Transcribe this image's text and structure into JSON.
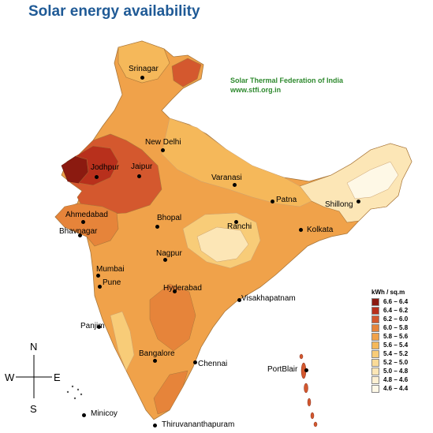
{
  "title": "Solar energy availability",
  "credit": {
    "org": "Solar Thermal Federation of India",
    "url": "www.stfi.org.in"
  },
  "legend": {
    "title": "kWh / sq.m",
    "items": [
      {
        "label": "6.6 – 6.4",
        "color": "#8b1a10"
      },
      {
        "label": "6.4 – 6.2",
        "color": "#b8301c"
      },
      {
        "label": "6.2 – 6.0",
        "color": "#d4582e"
      },
      {
        "label": "6.0 – 5.8",
        "color": "#e6843a"
      },
      {
        "label": "5.8 – 5.6",
        "color": "#f0a24a"
      },
      {
        "label": "5.6 – 5.4",
        "color": "#f5b85a"
      },
      {
        "label": "5.4 – 5.2",
        "color": "#f8cc78"
      },
      {
        "label": "5.2 – 5.0",
        "color": "#fadb98"
      },
      {
        "label": "5.0 – 4.8",
        "color": "#fce6b6"
      },
      {
        "label": "4.8 – 4.6",
        "color": "#fdf0d2"
      },
      {
        "label": "4.6 – 4.4",
        "color": "#fef8e6"
      }
    ]
  },
  "cities": {
    "srinagar": "Srinagar",
    "new_delhi": "New Delhi",
    "jodhpur": "Jodhpur",
    "jaipur": "Jaipur",
    "varanasi": "Varanasi",
    "patna": "Patna",
    "shillong": "Shillong",
    "ahmedabad": "Ahmedabad",
    "bhavnagar": "Bhavnagar",
    "bhopal": "Bhopal",
    "ranchi": "Ranchi",
    "kolkata": "Kolkata",
    "nagpur": "Nagpur",
    "mumbai": "Mumbai",
    "pune": "Pune",
    "hyderabad": "Hyderabad",
    "visakhapatnam": "Visakhapatnam",
    "panjim": "Panjim",
    "bangalore": "Bangalore",
    "chennai": "Chennai",
    "port_blair": "PortBlair",
    "minicoy": "Minicoy",
    "thiruvananthapuram": "Thiruvananthapuram"
  },
  "compass": {
    "n": "N",
    "s": "S",
    "e": "E",
    "w": "W"
  }
}
